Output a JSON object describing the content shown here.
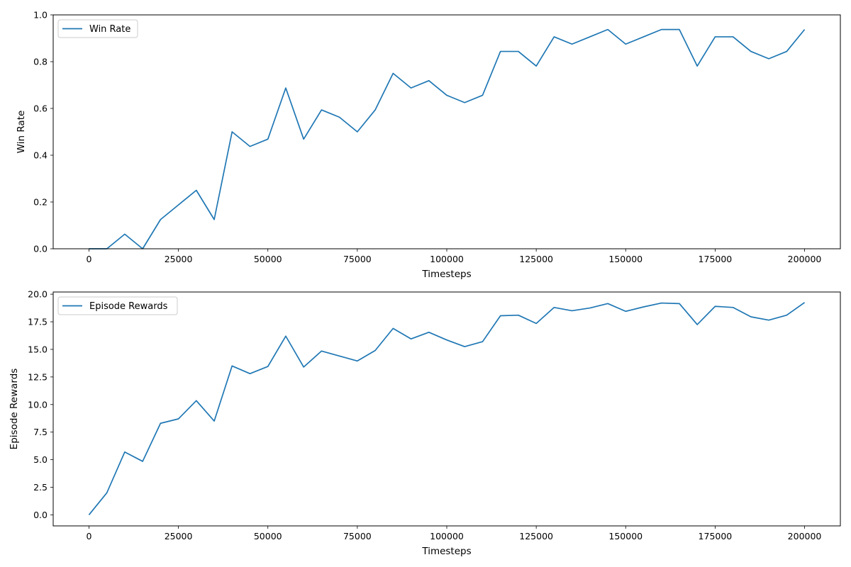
{
  "chart_data": [
    {
      "type": "line",
      "title": "",
      "xlabel": "Timesteps",
      "ylabel": "Win Rate",
      "xlim": [
        -10000,
        210000
      ],
      "ylim": [
        0,
        1.0
      ],
      "xticks": [
        0,
        25000,
        50000,
        75000,
        100000,
        125000,
        150000,
        175000,
        200000
      ],
      "yticks": [
        0.0,
        0.2,
        0.4,
        0.6,
        0.8,
        1.0
      ],
      "ytick_labels": [
        "0.0",
        "0.2",
        "0.4",
        "0.6",
        "0.8",
        "1.0"
      ],
      "grid": false,
      "legend": "upper-left",
      "x": [
        0,
        5000,
        10000,
        15000,
        20000,
        25000,
        30000,
        35000,
        40000,
        45000,
        50000,
        55000,
        60000,
        65000,
        70000,
        75000,
        80000,
        85000,
        90000,
        95000,
        100000,
        105000,
        110000,
        115000,
        120000,
        125000,
        130000,
        135000,
        140000,
        145000,
        150000,
        155000,
        160000,
        165000,
        170000,
        175000,
        180000,
        185000,
        190000,
        195000,
        200000
      ],
      "series": [
        {
          "name": "Win Rate",
          "color": "#1f77b4",
          "values": [
            0.0,
            0.0,
            0.0625,
            0.0,
            0.125,
            0.1875,
            0.25,
            0.125,
            0.5,
            0.4375,
            0.46875,
            0.6875,
            0.46875,
            0.59375,
            0.5625,
            0.5,
            0.59375,
            0.75,
            0.6875,
            0.71875,
            0.65625,
            0.625,
            0.65625,
            0.84375,
            0.84375,
            0.78125,
            0.90625,
            0.875,
            0.90625,
            0.9375,
            0.875,
            0.90625,
            0.9375,
            0.9375,
            0.78125,
            0.90625,
            0.90625,
            0.84375,
            0.8125,
            0.84375,
            0.9375
          ]
        }
      ]
    },
    {
      "type": "line",
      "title": "",
      "xlabel": "Timesteps",
      "ylabel": "Episode Rewards",
      "xlim": [
        -10000,
        210000
      ],
      "ylim": [
        -1.0,
        20.2
      ],
      "xticks": [
        0,
        25000,
        50000,
        75000,
        100000,
        125000,
        150000,
        175000,
        200000
      ],
      "yticks": [
        0.0,
        2.5,
        5.0,
        7.5,
        10.0,
        12.5,
        15.0,
        17.5,
        20.0
      ],
      "ytick_labels": [
        "0.0",
        "2.5",
        "5.0",
        "7.5",
        "10.0",
        "12.5",
        "15.0",
        "17.5",
        "20.0"
      ],
      "grid": false,
      "legend": "upper-left",
      "x": [
        0,
        5000,
        10000,
        15000,
        20000,
        25000,
        30000,
        35000,
        40000,
        45000,
        50000,
        55000,
        60000,
        65000,
        70000,
        75000,
        80000,
        85000,
        90000,
        95000,
        100000,
        105000,
        110000,
        115000,
        120000,
        125000,
        130000,
        135000,
        140000,
        145000,
        150000,
        155000,
        160000,
        165000,
        170000,
        175000,
        180000,
        185000,
        190000,
        195000,
        200000
      ],
      "series": [
        {
          "name": "Episode Rewards",
          "color": "#1f77b4",
          "values": [
            0.0,
            2.0,
            5.7,
            4.85,
            8.3,
            8.7,
            10.35,
            8.5,
            13.5,
            12.8,
            13.45,
            16.2,
            13.4,
            14.85,
            14.4,
            13.95,
            14.9,
            16.9,
            15.95,
            16.55,
            15.85,
            15.25,
            15.7,
            18.05,
            18.1,
            17.35,
            18.8,
            18.5,
            18.75,
            19.15,
            18.45,
            18.85,
            19.2,
            19.15,
            17.25,
            18.9,
            18.8,
            17.95,
            17.65,
            18.1,
            19.25
          ]
        }
      ]
    }
  ]
}
